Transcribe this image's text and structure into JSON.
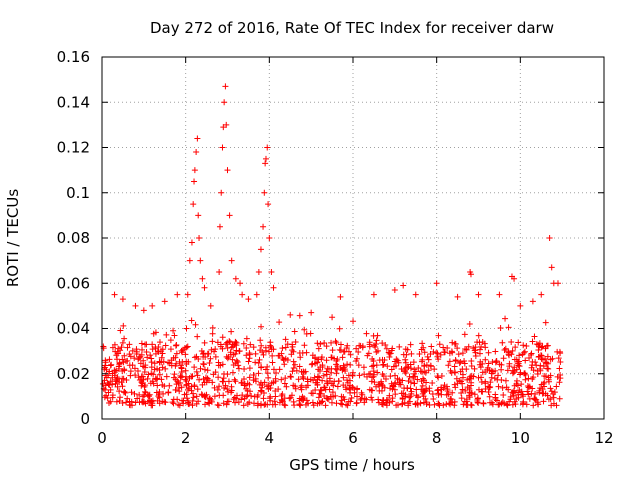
{
  "chart_data": {
    "type": "scatter",
    "title": "Day 272 of 2016, Rate Of TEC Index for receiver darw",
    "xlabel": "GPS time / hours",
    "ylabel": "ROTI / TECUs",
    "xlim": [
      0,
      12
    ],
    "ylim": [
      0,
      0.16
    ],
    "x_ticks": [
      0,
      2,
      4,
      6,
      8,
      10,
      12
    ],
    "x_tick_labels": [
      "0",
      "2",
      "4",
      "6",
      "8",
      "10",
      "12"
    ],
    "y_ticks": [
      0,
      0.02,
      0.04,
      0.06,
      0.08,
      0.1,
      0.12,
      0.14,
      0.16
    ],
    "y_tick_labels": [
      "0",
      "0.02",
      "0.04",
      "0.06",
      "0.08",
      "0.1",
      "0.12",
      "0.14",
      "0.16"
    ],
    "grid": true,
    "marker": "plus",
    "color": "#ff0000",
    "series": [
      {
        "name": "ROTI",
        "x": [
          2.02,
          2.05,
          2.1,
          2.15,
          2.18,
          2.2,
          2.22,
          2.25,
          2.28,
          2.3,
          2.32,
          2.35,
          2.4,
          2.45,
          2.8,
          2.82,
          2.85,
          2.88,
          2.9,
          2.92,
          2.95,
          2.97,
          3.0,
          3.05,
          3.1,
          3.2,
          3.3,
          3.35,
          3.7,
          3.75,
          3.8,
          3.85,
          3.88,
          3.9,
          3.92,
          3.95,
          3.97,
          4.0,
          4.05,
          4.1,
          8.8,
          8.82,
          9.8,
          9.85,
          10.7,
          10.75,
          10.8,
          0.3,
          0.5,
          0.8,
          1.0,
          1.2,
          1.5,
          1.8,
          2.6,
          3.5,
          4.5,
          5.0,
          5.5,
          5.7,
          6.5,
          7.0,
          7.2,
          7.5,
          8.0,
          8.5,
          9.0,
          9.5,
          10.0,
          10.3,
          10.5,
          10.9
        ],
        "y": [
          0.04,
          0.055,
          0.07,
          0.078,
          0.095,
          0.105,
          0.11,
          0.118,
          0.124,
          0.09,
          0.08,
          0.07,
          0.062,
          0.058,
          0.065,
          0.085,
          0.1,
          0.12,
          0.129,
          0.14,
          0.147,
          0.13,
          0.11,
          0.09,
          0.07,
          0.062,
          0.06,
          0.055,
          0.055,
          0.065,
          0.075,
          0.085,
          0.1,
          0.113,
          0.115,
          0.12,
          0.095,
          0.08,
          0.065,
          0.058,
          0.065,
          0.064,
          0.063,
          0.062,
          0.08,
          0.067,
          0.06,
          0.055,
          0.053,
          0.05,
          0.048,
          0.05,
          0.052,
          0.055,
          0.05,
          0.053,
          0.046,
          0.047,
          0.045,
          0.054,
          0.055,
          0.057,
          0.059,
          0.055,
          0.06,
          0.054,
          0.055,
          0.055,
          0.05,
          0.052,
          0.055,
          0.06
        ]
      }
    ],
    "density_note": "dense band of points between 0.005 and 0.035 across 0 to 11 hours"
  }
}
